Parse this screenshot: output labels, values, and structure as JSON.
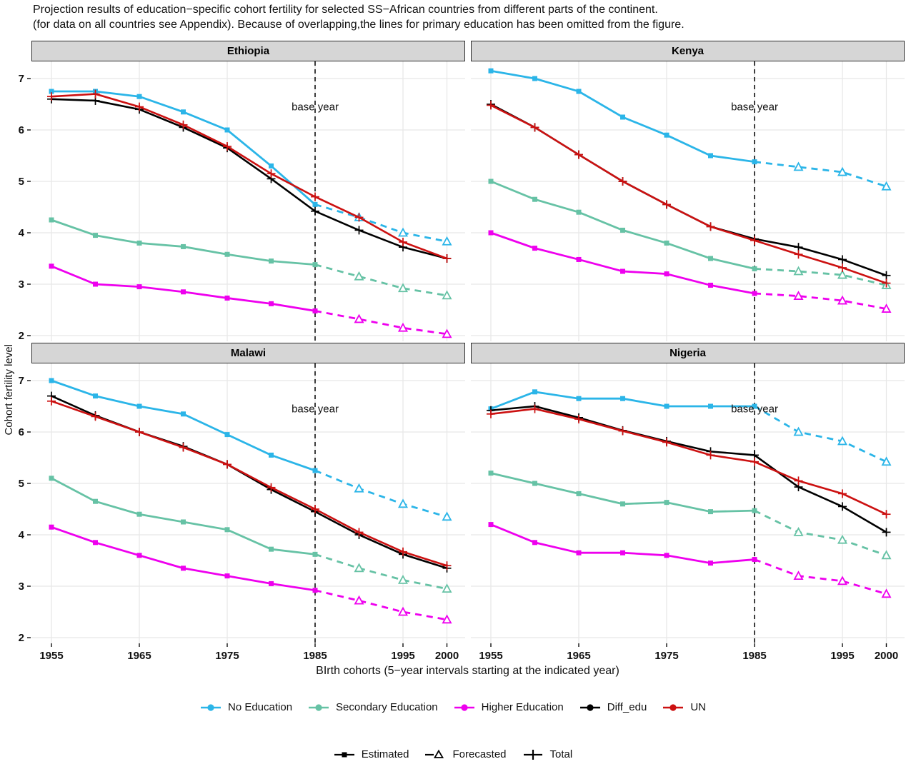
{
  "title": {
    "line1": "Projection results of education−specific cohort fertility for selected SS−African countries from different parts of the continent.",
    "line2": "(for data on all countries see Appendix). Because of overlapping,the lines for primary education has been omitted from the figure."
  },
  "axes": {
    "y_title": "Cohort fertility level",
    "x_title": "BIrth cohorts (5−year intervals starting at the indicated year)",
    "y_ticks": [
      7,
      6,
      5,
      4,
      3,
      2
    ],
    "x_ticks": [
      1955,
      1965,
      1975,
      1985,
      1995,
      2000
    ],
    "ylim": [
      1.85,
      7.3
    ],
    "base_year": {
      "value": 1985,
      "label": "base year"
    }
  },
  "colors": {
    "no_education": "#2bb5e8",
    "secondary_education": "#66c2a5",
    "higher_education": "#ee00ee",
    "diff_edu": "#000000",
    "un": "#cc1111",
    "grid": "#e8e8e8",
    "strip_bg": "#d6d6d6"
  },
  "legend_series": [
    {
      "label": "No Education",
      "color": "#2bb5e8"
    },
    {
      "label": "Secondary Education",
      "color": "#66c2a5"
    },
    {
      "label": "Higher Education",
      "color": "#ee00ee"
    },
    {
      "label": "Diff_edu",
      "color": "#000000"
    },
    {
      "label": "UN",
      "color": "#cc1111"
    }
  ],
  "legend_linetype": [
    {
      "label": "Estimated",
      "marker": "filled-square"
    },
    {
      "label": "Forecasted",
      "marker": "open-triangle"
    },
    {
      "label": "Total",
      "marker": "plus"
    }
  ],
  "chart_data": [
    {
      "type": "line",
      "title": "Ethiopia",
      "base_year": 1985,
      "x": [
        1955,
        1960,
        1965,
        1970,
        1975,
        1980,
        1985,
        1990,
        1995,
        2000
      ],
      "series": [
        {
          "name": "No Education",
          "color": "#2bb5e8",
          "style": "education",
          "forecast_from_index": 6,
          "values": [
            6.75,
            6.75,
            6.65,
            6.35,
            6.0,
            5.3,
            4.55,
            4.3,
            4.0,
            3.83
          ]
        },
        {
          "name": "Secondary Education",
          "color": "#66c2a5",
          "style": "education",
          "forecast_from_index": 6,
          "values": [
            4.25,
            3.95,
            3.8,
            3.73,
            3.58,
            3.45,
            3.38,
            3.15,
            2.92,
            2.78
          ]
        },
        {
          "name": "Higher Education",
          "color": "#ee00ee",
          "style": "education",
          "forecast_from_index": 6,
          "values": [
            3.35,
            3.0,
            2.95,
            2.85,
            2.73,
            2.62,
            2.48,
            2.32,
            2.15,
            2.03
          ]
        },
        {
          "name": "Diff_edu",
          "color": "#000000",
          "style": "total",
          "values": [
            6.6,
            6.57,
            6.4,
            6.05,
            5.65,
            5.05,
            4.42,
            4.05,
            3.72,
            3.5
          ]
        },
        {
          "name": "UN",
          "color": "#cc1111",
          "style": "total",
          "values": [
            6.65,
            6.7,
            6.45,
            6.1,
            5.68,
            5.15,
            4.7,
            4.3,
            3.82,
            3.5
          ]
        }
      ]
    },
    {
      "type": "line",
      "title": "Kenya",
      "base_year": 1985,
      "x": [
        1955,
        1960,
        1965,
        1970,
        1975,
        1980,
        1985,
        1990,
        1995,
        2000
      ],
      "series": [
        {
          "name": "No Education",
          "color": "#2bb5e8",
          "style": "education",
          "forecast_from_index": 6,
          "values": [
            7.15,
            7.0,
            6.75,
            6.25,
            5.9,
            5.5,
            5.38,
            5.28,
            5.18,
            4.9
          ]
        },
        {
          "name": "Secondary Education",
          "color": "#66c2a5",
          "style": "education",
          "forecast_from_index": 6,
          "values": [
            5.0,
            4.65,
            4.4,
            4.05,
            3.8,
            3.5,
            3.3,
            3.25,
            3.18,
            2.98
          ]
        },
        {
          "name": "Higher Education",
          "color": "#ee00ee",
          "style": "education",
          "forecast_from_index": 6,
          "values": [
            4.0,
            3.7,
            3.48,
            3.25,
            3.2,
            2.98,
            2.82,
            2.77,
            2.68,
            2.52
          ]
        },
        {
          "name": "Diff_edu",
          "color": "#000000",
          "style": "total",
          "values": [
            6.5,
            6.05,
            5.52,
            5.0,
            4.55,
            4.12,
            3.88,
            3.72,
            3.48,
            3.17
          ]
        },
        {
          "name": "UN",
          "color": "#cc1111",
          "style": "total",
          "values": [
            6.48,
            6.05,
            5.52,
            5.0,
            4.55,
            4.12,
            3.85,
            3.58,
            3.32,
            3.02
          ]
        }
      ]
    },
    {
      "type": "line",
      "title": "Malawi",
      "base_year": 1985,
      "x": [
        1955,
        1960,
        1965,
        1970,
        1975,
        1980,
        1985,
        1990,
        1995,
        2000
      ],
      "series": [
        {
          "name": "No Education",
          "color": "#2bb5e8",
          "style": "education",
          "forecast_from_index": 6,
          "values": [
            7.0,
            6.7,
            6.5,
            6.35,
            5.95,
            5.55,
            5.25,
            4.9,
            4.6,
            4.35
          ]
        },
        {
          "name": "Secondary Education",
          "color": "#66c2a5",
          "style": "education",
          "forecast_from_index": 6,
          "values": [
            5.1,
            4.65,
            4.4,
            4.25,
            4.1,
            3.72,
            3.62,
            3.35,
            3.12,
            2.95
          ]
        },
        {
          "name": "Higher Education",
          "color": "#ee00ee",
          "style": "education",
          "forecast_from_index": 6,
          "values": [
            4.15,
            3.85,
            3.6,
            3.35,
            3.2,
            3.05,
            2.92,
            2.72,
            2.5,
            2.35
          ]
        },
        {
          "name": "Diff_edu",
          "color": "#000000",
          "style": "total",
          "values": [
            6.7,
            6.32,
            6.0,
            5.72,
            5.37,
            4.88,
            4.45,
            4.0,
            3.62,
            3.35
          ]
        },
        {
          "name": "UN",
          "color": "#cc1111",
          "style": "total",
          "values": [
            6.6,
            6.3,
            6.0,
            5.7,
            5.37,
            4.92,
            4.5,
            4.05,
            3.67,
            3.4
          ]
        }
      ]
    },
    {
      "type": "line",
      "title": "Nigeria",
      "base_year": 1985,
      "x": [
        1955,
        1960,
        1965,
        1970,
        1975,
        1980,
        1985,
        1990,
        1995,
        2000
      ],
      "series": [
        {
          "name": "No Education",
          "color": "#2bb5e8",
          "style": "education",
          "forecast_from_index": 6,
          "values": [
            6.45,
            6.78,
            6.65,
            6.65,
            6.5,
            6.5,
            6.5,
            6.0,
            5.82,
            5.42
          ]
        },
        {
          "name": "Secondary Education",
          "color": "#66c2a5",
          "style": "education",
          "forecast_from_index": 6,
          "values": [
            5.2,
            5.0,
            4.8,
            4.6,
            4.63,
            4.45,
            4.47,
            4.05,
            3.9,
            3.6
          ]
        },
        {
          "name": "Higher Education",
          "color": "#ee00ee",
          "style": "education",
          "forecast_from_index": 6,
          "values": [
            4.2,
            3.85,
            3.65,
            3.65,
            3.6,
            3.45,
            3.52,
            3.2,
            3.1,
            2.85
          ]
        },
        {
          "name": "Diff_edu",
          "color": "#000000",
          "style": "total",
          "values": [
            6.42,
            6.5,
            6.28,
            6.03,
            5.82,
            5.62,
            5.55,
            4.93,
            4.55,
            4.05
          ]
        },
        {
          "name": "UN",
          "color": "#cc1111",
          "style": "total",
          "values": [
            6.35,
            6.45,
            6.25,
            6.02,
            5.8,
            5.55,
            5.42,
            5.05,
            4.8,
            4.4
          ]
        }
      ]
    }
  ]
}
